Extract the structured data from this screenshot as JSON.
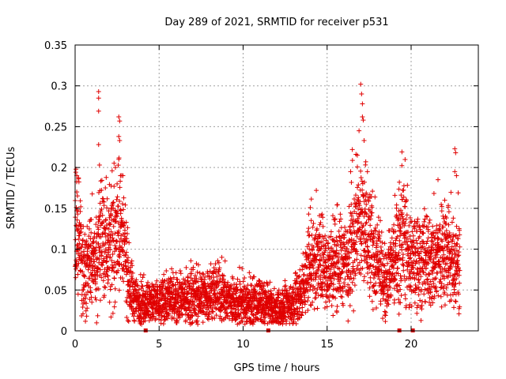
{
  "chart_data": {
    "type": "scatter",
    "title": "Day 289 of 2021, SRMTID for receiver p531",
    "xlabel": "GPS time / hours",
    "ylabel": "SRMTID / TECUs",
    "xlim": [
      0,
      24
    ],
    "ylim": [
      0,
      0.35
    ],
    "xticks": [
      0,
      5,
      10,
      15,
      20
    ],
    "yticks": [
      0,
      0.05,
      0.1,
      0.15,
      0.2,
      0.25,
      0.3,
      0.35
    ],
    "xtick_labels": [
      "0",
      "5",
      "10",
      "15",
      "20"
    ],
    "ytick_labels": [
      "0",
      "0.05",
      "0.1",
      "0.15",
      "0.2",
      "0.25",
      "0.3",
      "0.35"
    ],
    "grid": true,
    "marker": "+",
    "marker_color": "#e00000",
    "series": [
      {
        "name": "SRMTID",
        "envelope": [
          [
            0.0,
            0.1
          ],
          [
            0.2,
            0.13
          ],
          [
            0.5,
            0.07
          ],
          [
            0.8,
            0.08
          ],
          [
            1.0,
            0.09
          ],
          [
            1.3,
            0.07
          ],
          [
            1.5,
            0.12
          ],
          [
            1.8,
            0.11
          ],
          [
            2.2,
            0.1
          ],
          [
            2.6,
            0.13
          ],
          [
            2.9,
            0.1
          ],
          [
            3.2,
            0.06
          ],
          [
            3.5,
            0.04
          ],
          [
            4.0,
            0.035
          ],
          [
            5.0,
            0.035
          ],
          [
            6.0,
            0.04
          ],
          [
            7.0,
            0.04
          ],
          [
            8.0,
            0.045
          ],
          [
            8.5,
            0.05
          ],
          [
            9.0,
            0.04
          ],
          [
            10.0,
            0.035
          ],
          [
            11.0,
            0.035
          ],
          [
            11.5,
            0.03
          ],
          [
            12.0,
            0.025
          ],
          [
            13.0,
            0.035
          ],
          [
            13.5,
            0.05
          ],
          [
            14.0,
            0.08
          ],
          [
            14.5,
            0.09
          ],
          [
            15.0,
            0.07
          ],
          [
            15.5,
            0.09
          ],
          [
            16.0,
            0.08
          ],
          [
            16.5,
            0.11
          ],
          [
            17.0,
            0.13
          ],
          [
            17.5,
            0.11
          ],
          [
            18.0,
            0.08
          ],
          [
            18.5,
            0.06
          ],
          [
            19.0,
            0.09
          ],
          [
            19.5,
            0.12
          ],
          [
            20.0,
            0.08
          ],
          [
            20.5,
            0.09
          ],
          [
            21.0,
            0.08
          ],
          [
            21.5,
            0.09
          ],
          [
            22.0,
            0.1
          ],
          [
            22.5,
            0.08
          ],
          [
            22.9,
            0.09
          ]
        ],
        "peaks": [
          [
            0.05,
            0.198
          ],
          [
            0.1,
            0.19
          ],
          [
            0.1,
            0.17
          ],
          [
            0.1,
            0.147
          ],
          [
            1.4,
            0.293
          ],
          [
            1.4,
            0.285
          ],
          [
            1.4,
            0.269
          ],
          [
            1.4,
            0.228
          ],
          [
            1.45,
            0.203
          ],
          [
            2.6,
            0.262
          ],
          [
            2.65,
            0.257
          ],
          [
            2.6,
            0.238
          ],
          [
            2.65,
            0.233
          ],
          [
            2.6,
            0.21
          ],
          [
            1.8,
            0.175
          ],
          [
            2.5,
            0.18
          ],
          [
            2.7,
            0.19
          ],
          [
            17.0,
            0.302
          ],
          [
            17.05,
            0.29
          ],
          [
            17.1,
            0.278
          ],
          [
            17.1,
            0.262
          ],
          [
            17.15,
            0.258
          ],
          [
            16.9,
            0.245
          ],
          [
            17.2,
            0.233
          ],
          [
            16.5,
            0.222
          ],
          [
            16.8,
            0.215
          ],
          [
            17.3,
            0.207
          ],
          [
            16.4,
            0.195
          ],
          [
            17.4,
            0.195
          ],
          [
            14.0,
            0.151
          ],
          [
            13.9,
            0.143
          ],
          [
            19.3,
            0.182
          ],
          [
            19.5,
            0.172
          ],
          [
            22.6,
            0.223
          ],
          [
            22.65,
            0.218
          ],
          [
            22.6,
            0.195
          ],
          [
            22.7,
            0.19
          ],
          [
            21.6,
            0.185
          ],
          [
            22.0,
            0.16
          ]
        ]
      }
    ],
    "gap_markers_x": [
      4.2,
      11.5,
      19.3,
      20.1
    ]
  }
}
